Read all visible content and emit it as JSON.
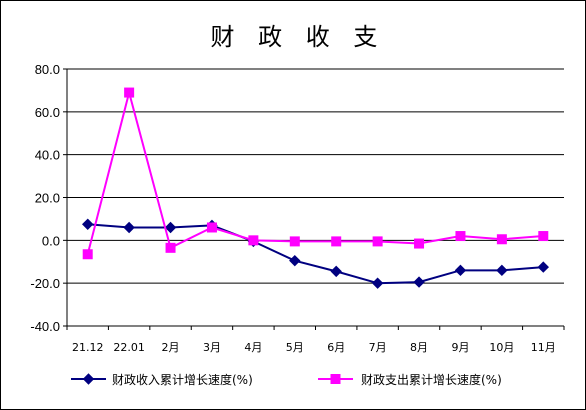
{
  "chart_data": {
    "type": "line",
    "title": "财 政 收 支",
    "xlabel": "",
    "ylabel": "",
    "categories": [
      "21.12",
      "22.01",
      "2月",
      "3月",
      "4月",
      "5月",
      "6月",
      "7月",
      "8月",
      "9月",
      "10月",
      "11月"
    ],
    "ylim": [
      -40,
      80
    ],
    "yticks": [
      "80.0",
      "60.0",
      "40.0",
      "20.0",
      "0.0",
      "-20.0",
      "-40.0"
    ],
    "ytick_values": [
      80,
      60,
      40,
      20,
      0,
      -20,
      -40
    ],
    "grid": true,
    "legend_position": "bottom",
    "series": [
      {
        "name": "财政收入累计增长速度(%)",
        "color": "#000080",
        "marker": "diamond",
        "values": [
          7.5,
          6.0,
          6.0,
          7.0,
          -0.5,
          -9.5,
          -14.5,
          -20.0,
          -19.5,
          -14.0,
          -14.0,
          -12.5
        ]
      },
      {
        "name": "财政支出累计增长速度(%)",
        "color": "#ff00ff",
        "marker": "square",
        "values": [
          -6.5,
          69.0,
          -3.5,
          6.0,
          0.0,
          -0.5,
          -0.5,
          -0.5,
          -1.5,
          2.0,
          0.5,
          2.0
        ]
      }
    ]
  }
}
